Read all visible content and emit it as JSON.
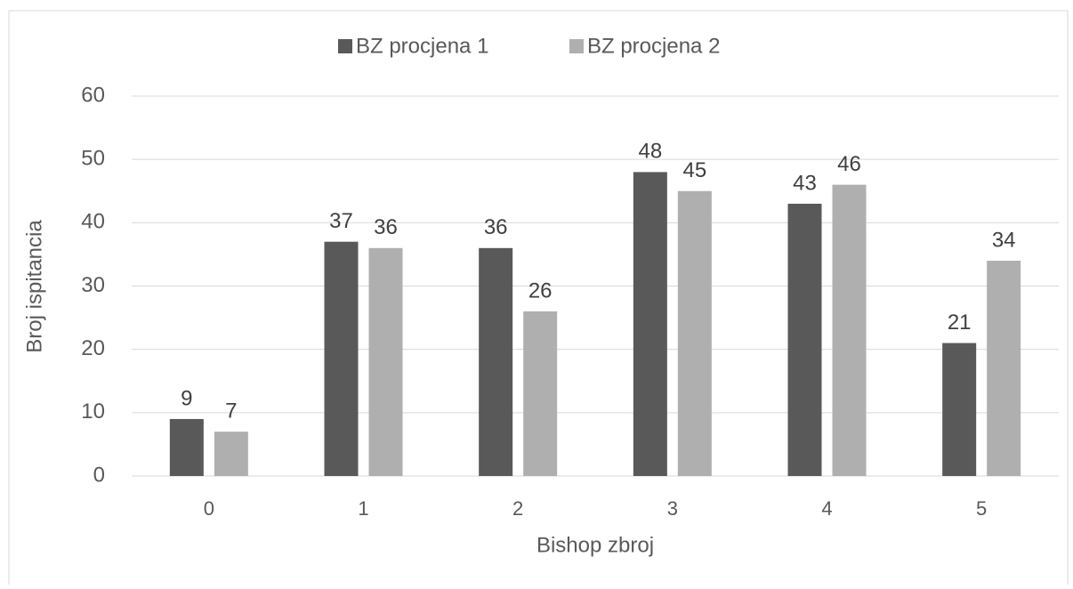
{
  "chart_data": {
    "type": "bar",
    "x_label": "Bishop zbroj",
    "y_label": "Broj ispitancia",
    "categories": [
      "0",
      "1",
      "2",
      "3",
      "4",
      "5"
    ],
    "series": [
      {
        "name": "BZ procjena 1",
        "color": "#595959",
        "values": [
          9,
          37,
          36,
          48,
          43,
          21
        ]
      },
      {
        "name": "BZ procjena 2",
        "color": "#afafaf",
        "values": [
          7,
          36,
          26,
          45,
          46,
          34
        ]
      }
    ],
    "ylim": [
      0,
      60
    ],
    "yticks": [
      0,
      10,
      20,
      30,
      40,
      50,
      60
    ],
    "grid": true,
    "legend": "top"
  }
}
